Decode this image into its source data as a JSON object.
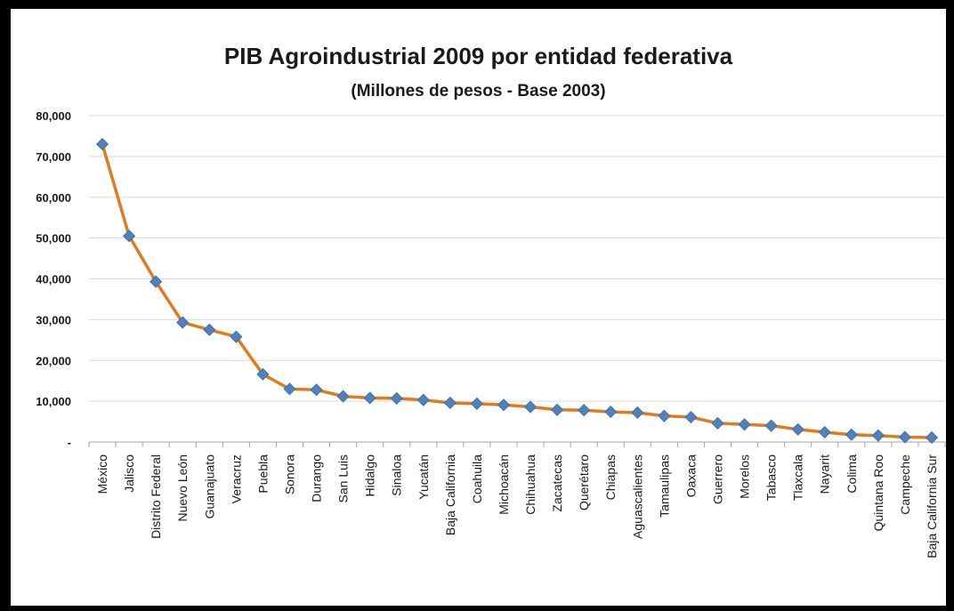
{
  "chart_data": {
    "type": "line",
    "title": "PIB Agroindustrial 2009 por entidad federativa",
    "subtitle": "(Millones de pesos - Base 2003)",
    "xlabel": "",
    "ylabel": "",
    "ylim": [
      0,
      80000
    ],
    "y_ticks": [
      "-",
      "10,000",
      "20,000",
      "30,000",
      "40,000",
      "50,000",
      "60,000",
      "70,000",
      "80,000"
    ],
    "grid": true,
    "legend": "none",
    "line_color": "#E07B1F",
    "marker_color": "#4F81BD",
    "categories": [
      "México",
      "Jalisco",
      "Distrito Federal",
      "Nuevo León",
      "Guanajuato",
      "Veracruz",
      "Puebla",
      "Sonora",
      "Durango",
      "San Luis",
      "Hidalgo",
      "Sinaloa",
      "Yucatán",
      "Baja California",
      "Coahuila",
      "Michoacán",
      "Chihuahua",
      "Zacatecas",
      "Querétaro",
      "Chiapas",
      "Aguascalientes",
      "Tamaulipas",
      "Oaxaca",
      "Guerrero",
      "Morelos",
      "Tabasco",
      "Tlaxcala",
      "Nayarit",
      "Colima",
      "Quintana Roo",
      "Campeche",
      "Baja California Sur"
    ],
    "series": [
      {
        "values": [
          73000,
          50500,
          39300,
          29300,
          27500,
          25800,
          16600,
          13000,
          12800,
          11200,
          10800,
          10700,
          10300,
          9600,
          9400,
          9100,
          8600,
          7900,
          7800,
          7400,
          7200,
          6400,
          6100,
          4600,
          4300,
          4000,
          3100,
          2400,
          1800,
          1600,
          1200,
          1100
        ]
      }
    ]
  }
}
